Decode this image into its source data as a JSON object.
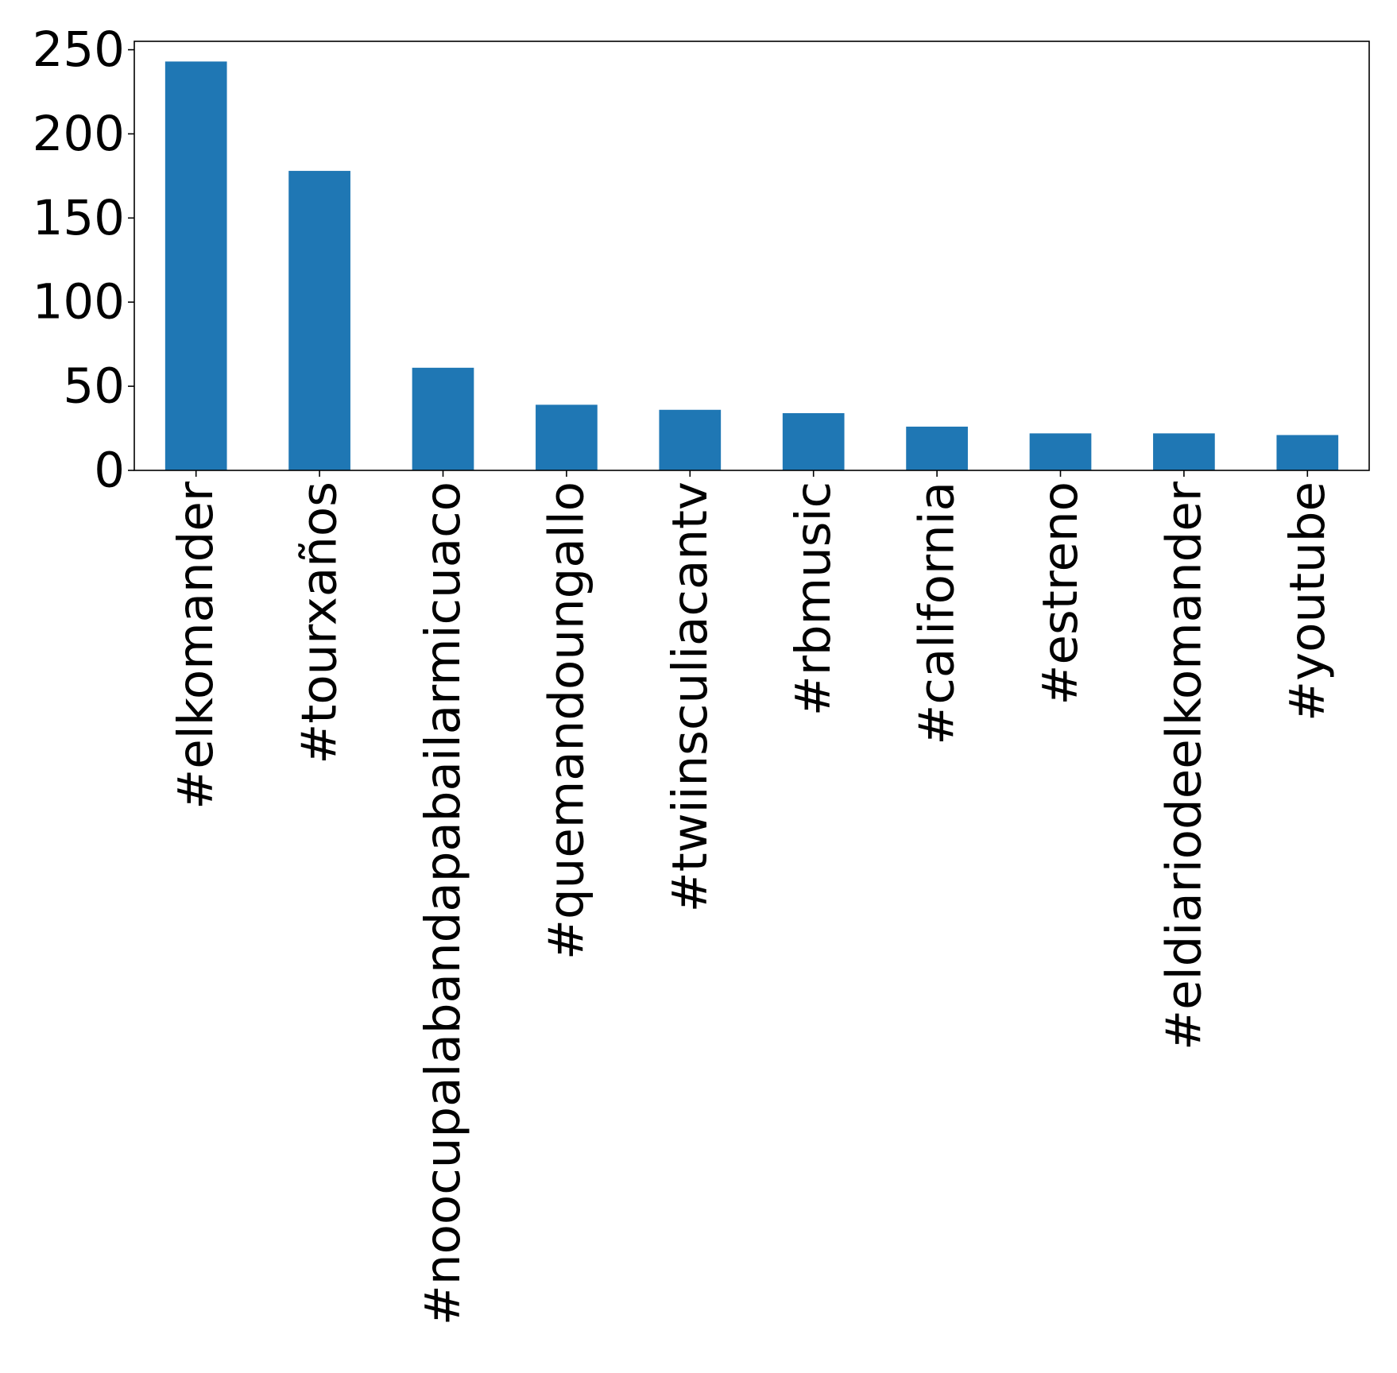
{
  "chart_data": {
    "type": "bar",
    "categories": [
      "#elkomander",
      "#tourxaños",
      "#noocupalabandapabailarmicuaco",
      "#quemandoungallo",
      "#twiinsculiacantv",
      "#rbmusic",
      "#california",
      "#estreno",
      "#eldiariodeelkomander",
      "#youtube"
    ],
    "values": [
      243,
      178,
      61,
      39,
      36,
      34,
      26,
      22,
      22,
      21
    ],
    "ylim": [
      0,
      255
    ],
    "yticks": [
      0,
      50,
      100,
      150,
      200,
      250
    ],
    "title": "",
    "xlabel": "",
    "ylabel": "",
    "grid": false,
    "bar_color": "#1f77b4"
  }
}
